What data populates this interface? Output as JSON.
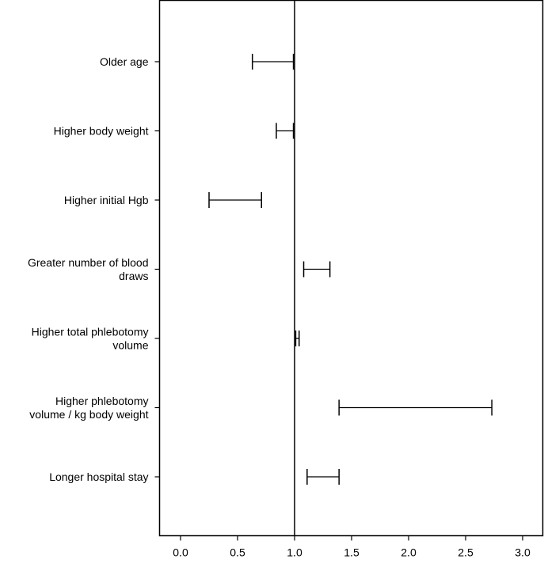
{
  "chart_data": {
    "type": "forest",
    "title": "",
    "xlabel": "",
    "ylabel": "",
    "xlim": [
      -0.25,
      3.1
    ],
    "x_ticks": [
      0.0,
      0.5,
      1.0,
      1.5,
      2.0,
      2.5,
      3.0
    ],
    "x_tick_labels": [
      "0.0",
      "0.5",
      "1.0",
      "1.5",
      "2.0",
      "2.5",
      "3.0"
    ],
    "reference_line": 1.0,
    "grid": false,
    "series": [
      {
        "label": [
          "Older age"
        ],
        "lower": 0.63,
        "upper": 0.99
      },
      {
        "label": [
          "Higher body weight"
        ],
        "lower": 0.84,
        "upper": 0.99
      },
      {
        "label": [
          "Higher initial Hgb"
        ],
        "lower": 0.25,
        "upper": 0.71
      },
      {
        "label": [
          "Greater number of blood",
          "draws"
        ],
        "lower": 1.08,
        "upper": 1.31
      },
      {
        "label": [
          "Higher total phlebotomy",
          "volume"
        ],
        "lower": 1.01,
        "upper": 1.04
      },
      {
        "label": [
          "Higher phlebotomy",
          "volume / kg body weight"
        ],
        "lower": 1.39,
        "upper": 2.73
      },
      {
        "label": [
          "Longer hospital stay"
        ],
        "lower": 1.11,
        "upper": 1.39
      }
    ]
  }
}
